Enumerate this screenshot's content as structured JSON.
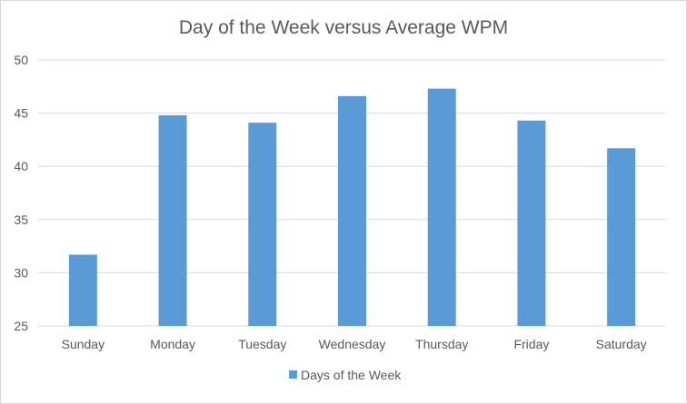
{
  "chart_data": {
    "type": "bar",
    "title": "Day of the Week versus Average WPM",
    "categories": [
      "Sunday",
      "Monday",
      "Tuesday",
      "Wednesday",
      "Thursday",
      "Friday",
      "Saturday"
    ],
    "series": [
      {
        "name": "Days of the Week",
        "values": [
          31.7,
          44.8,
          44.1,
          46.6,
          47.3,
          44.3,
          41.7
        ]
      }
    ],
    "ylim": [
      25,
      50
    ],
    "yticks": [
      25,
      30,
      35,
      40,
      45,
      50
    ],
    "xlabel": "",
    "ylabel": "",
    "grid": true,
    "legend_position": "bottom",
    "colors": {
      "bar": "#5b9bd5",
      "grid": "#d9d9d9",
      "text": "#595959"
    }
  }
}
